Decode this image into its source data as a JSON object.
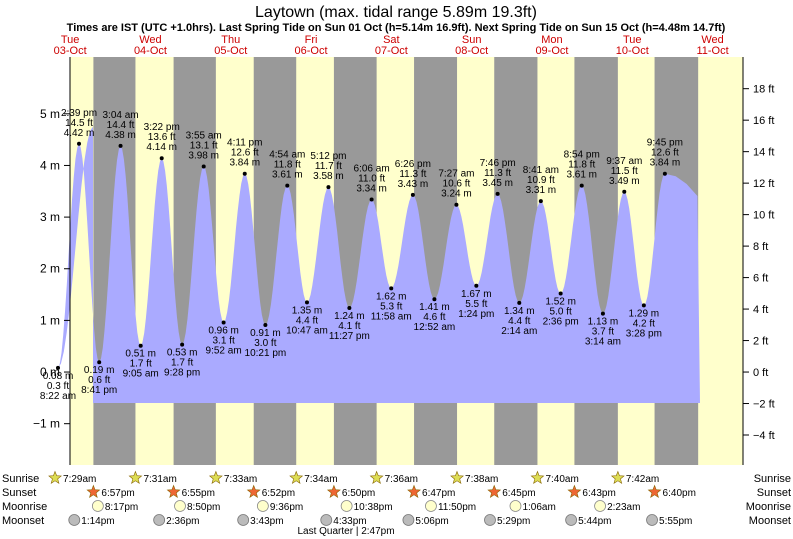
{
  "title": "Laytown (max. tidal range 5.89m 19.3ft)",
  "subtitle": "Times are IST (UTC +1.0hrs). Last Spring Tide on Sun 01 Oct (h=5.14m 16.9ft). Next Spring Tide on Sun 15 Oct (h=4.48m 14.7ft)",
  "colors": {
    "night": "#999999",
    "day": "#ffffcc",
    "water": "#aaaaff",
    "day_label": "#cc0000",
    "sun": "#dddd55",
    "sunset": "#ee6633",
    "moon": "#ffffcc",
    "moonset": "#bbbbbb"
  },
  "chart_data": {
    "type": "area",
    "days": [
      {
        "dow": "Tue",
        "date": "03-Oct"
      },
      {
        "dow": "Wed",
        "date": "04-Oct"
      },
      {
        "dow": "Thu",
        "date": "05-Oct"
      },
      {
        "dow": "Fri",
        "date": "06-Oct"
      },
      {
        "dow": "Sat",
        "date": "07-Oct"
      },
      {
        "dow": "Sun",
        "date": "08-Oct"
      },
      {
        "dow": "Mon",
        "date": "09-Oct"
      },
      {
        "dow": "Tue",
        "date": "10-Oct"
      },
      {
        "dow": "Wed",
        "date": "11-Oct"
      }
    ],
    "y_left": {
      "unit": "m",
      "min": -1.8,
      "max": 6.1,
      "ticks": [
        -1,
        0,
        1,
        2,
        3,
        4,
        5
      ],
      "labels": [
        "−1 m",
        "0 m",
        "1 m",
        "2 m",
        "3 m",
        "4 m",
        "5 m"
      ]
    },
    "y_right": {
      "unit": "ft",
      "ticks": [
        -4,
        -2,
        0,
        2,
        4,
        6,
        8,
        10,
        12,
        14,
        16,
        18
      ],
      "labels": [
        "−4 ft",
        "−2 ft",
        "0 ft",
        "2 ft",
        "4 ft",
        "6 ft",
        "8 ft",
        "10 ft",
        "12 ft",
        "14 ft",
        "16 ft",
        "18 ft"
      ]
    },
    "tides": [
      {
        "type": "low",
        "time": "8:22 am",
        "day": 0,
        "m": 0.08,
        "m_label": "0.08 m",
        "ft_label": "0.3 ft"
      },
      {
        "type": "high",
        "time": "2:39 pm",
        "day": 0,
        "m": 4.42,
        "m_label": "4.42 m",
        "ft_label": "14.5 ft"
      },
      {
        "type": "low",
        "time": "8:41 pm",
        "day": 0,
        "m": 0.19,
        "m_label": "0.19 m",
        "ft_label": "0.6 ft"
      },
      {
        "type": "high",
        "time": "3:04 am",
        "day": 1,
        "m": 4.38,
        "m_label": "4.38 m",
        "ft_label": "14.4 ft"
      },
      {
        "type": "low",
        "time": "9:05 am",
        "day": 1,
        "m": 0.51,
        "m_label": "0.51 m",
        "ft_label": "1.7 ft"
      },
      {
        "type": "high",
        "time": "3:22 pm",
        "day": 1,
        "m": 4.14,
        "m_label": "4.14 m",
        "ft_label": "13.6 ft"
      },
      {
        "type": "low",
        "time": "9:28 pm",
        "day": 1,
        "m": 0.53,
        "m_label": "0.53 m",
        "ft_label": "1.7 ft"
      },
      {
        "type": "high",
        "time": "3:55 am",
        "day": 2,
        "m": 3.98,
        "m_label": "3.98 m",
        "ft_label": "13.1 ft"
      },
      {
        "type": "low",
        "time": "9:52 am",
        "day": 2,
        "m": 0.96,
        "m_label": "0.96 m",
        "ft_label": "3.1 ft"
      },
      {
        "type": "high",
        "time": "4:11 pm",
        "day": 2,
        "m": 3.84,
        "m_label": "3.84 m",
        "ft_label": "12.6 ft"
      },
      {
        "type": "low",
        "time": "10:21 pm",
        "day": 2,
        "m": 0.91,
        "m_label": "0.91 m",
        "ft_label": "3.0 ft"
      },
      {
        "type": "high",
        "time": "4:54 am",
        "day": 3,
        "m": 3.61,
        "m_label": "3.61 m",
        "ft_label": "11.8 ft"
      },
      {
        "type": "low",
        "time": "10:47 am",
        "day": 3,
        "m": 1.35,
        "m_label": "1.35 m",
        "ft_label": "4.4 ft"
      },
      {
        "type": "high",
        "time": "5:12 pm",
        "day": 3,
        "m": 3.58,
        "m_label": "3.58 m",
        "ft_label": "11.7 ft"
      },
      {
        "type": "low",
        "time": "11:27 pm",
        "day": 3,
        "m": 1.24,
        "m_label": "1.24 m",
        "ft_label": "4.1 ft"
      },
      {
        "type": "high",
        "time": "6:06 am",
        "day": 4,
        "m": 3.34,
        "m_label": "3.34 m",
        "ft_label": "11.0 ft"
      },
      {
        "type": "low",
        "time": "11:58 am",
        "day": 4,
        "m": 1.62,
        "m_label": "1.62 m",
        "ft_label": "5.3 ft"
      },
      {
        "type": "high",
        "time": "6:26 pm",
        "day": 4,
        "m": 3.43,
        "m_label": "3.43 m",
        "ft_label": "11.3 ft"
      },
      {
        "type": "low",
        "time": "12:52 am",
        "day": 5,
        "m": 1.41,
        "m_label": "1.41 m",
        "ft_label": "4.6 ft"
      },
      {
        "type": "high",
        "time": "7:27 am",
        "day": 5,
        "m": 3.24,
        "m_label": "3.24 m",
        "ft_label": "10.6 ft"
      },
      {
        "type": "low",
        "time": "1:24 pm",
        "day": 5,
        "m": 1.67,
        "m_label": "1.67 m",
        "ft_label": "5.5 ft"
      },
      {
        "type": "high",
        "time": "7:46 pm",
        "day": 5,
        "m": 3.45,
        "m_label": "3.45 m",
        "ft_label": "11.3 ft"
      },
      {
        "type": "low",
        "time": "2:14 am",
        "day": 6,
        "m": 1.34,
        "m_label": "1.34 m",
        "ft_label": "4.4 ft"
      },
      {
        "type": "high",
        "time": "8:41 am",
        "day": 6,
        "m": 3.31,
        "m_label": "3.31 m",
        "ft_label": "10.9 ft"
      },
      {
        "type": "low",
        "time": "2:36 pm",
        "day": 6,
        "m": 1.52,
        "m_label": "1.52 m",
        "ft_label": "5.0 ft"
      },
      {
        "type": "high",
        "time": "8:54 pm",
        "day": 6,
        "m": 3.61,
        "m_label": "3.61 m",
        "ft_label": "11.8 ft"
      },
      {
        "type": "low",
        "time": "3:14 am",
        "day": 7,
        "m": 1.13,
        "m_label": "1.13 m",
        "ft_label": "3.7 ft"
      },
      {
        "type": "high",
        "time": "9:37 am",
        "day": 7,
        "m": 3.49,
        "m_label": "3.49 m",
        "ft_label": "11.5 ft"
      },
      {
        "type": "low",
        "time": "3:28 pm",
        "day": 7,
        "m": 1.29,
        "m_label": "1.29 m",
        "ft_label": "4.2 ft"
      },
      {
        "type": "high",
        "time": "9:45 pm",
        "day": 7,
        "m": 3.84,
        "m_label": "3.84 m",
        "ft_label": "12.6 ft"
      }
    ],
    "sunrise": [
      "7:29am",
      "7:31am",
      "7:33am",
      "7:34am",
      "7:36am",
      "7:38am",
      "7:40am",
      "7:42am"
    ],
    "sunset": [
      "6:57pm",
      "6:55pm",
      "6:52pm",
      "6:50pm",
      "6:47pm",
      "6:45pm",
      "6:43pm",
      "6:40pm"
    ],
    "moonrise": [
      {
        "day": 0,
        "time": "8:17pm"
      },
      {
        "day": 1,
        "time": "8:50pm"
      },
      {
        "day": 2,
        "time": "9:36pm"
      },
      {
        "day": 3,
        "time": "10:38pm"
      },
      {
        "day": 4,
        "time": "11:50pm"
      },
      {
        "day": 6,
        "time": "1:06am"
      },
      {
        "day": 7,
        "time": "2:23am"
      }
    ],
    "moonset": [
      {
        "day": 0,
        "time": "1:14pm"
      },
      {
        "day": 1,
        "time": "2:36pm"
      },
      {
        "day": 2,
        "time": "3:43pm"
      },
      {
        "day": 3,
        "time": "4:33pm"
      },
      {
        "day": 4,
        "time": "5:06pm"
      },
      {
        "day": 5,
        "time": "5:29pm"
      },
      {
        "day": 6,
        "time": "5:44pm"
      },
      {
        "day": 7,
        "time": "5:55pm"
      }
    ],
    "moon_phase": "Last Quarter | 2:47pm",
    "row_labels": [
      "Sunrise",
      "Sunset",
      "Moonrise",
      "Moonset"
    ]
  }
}
